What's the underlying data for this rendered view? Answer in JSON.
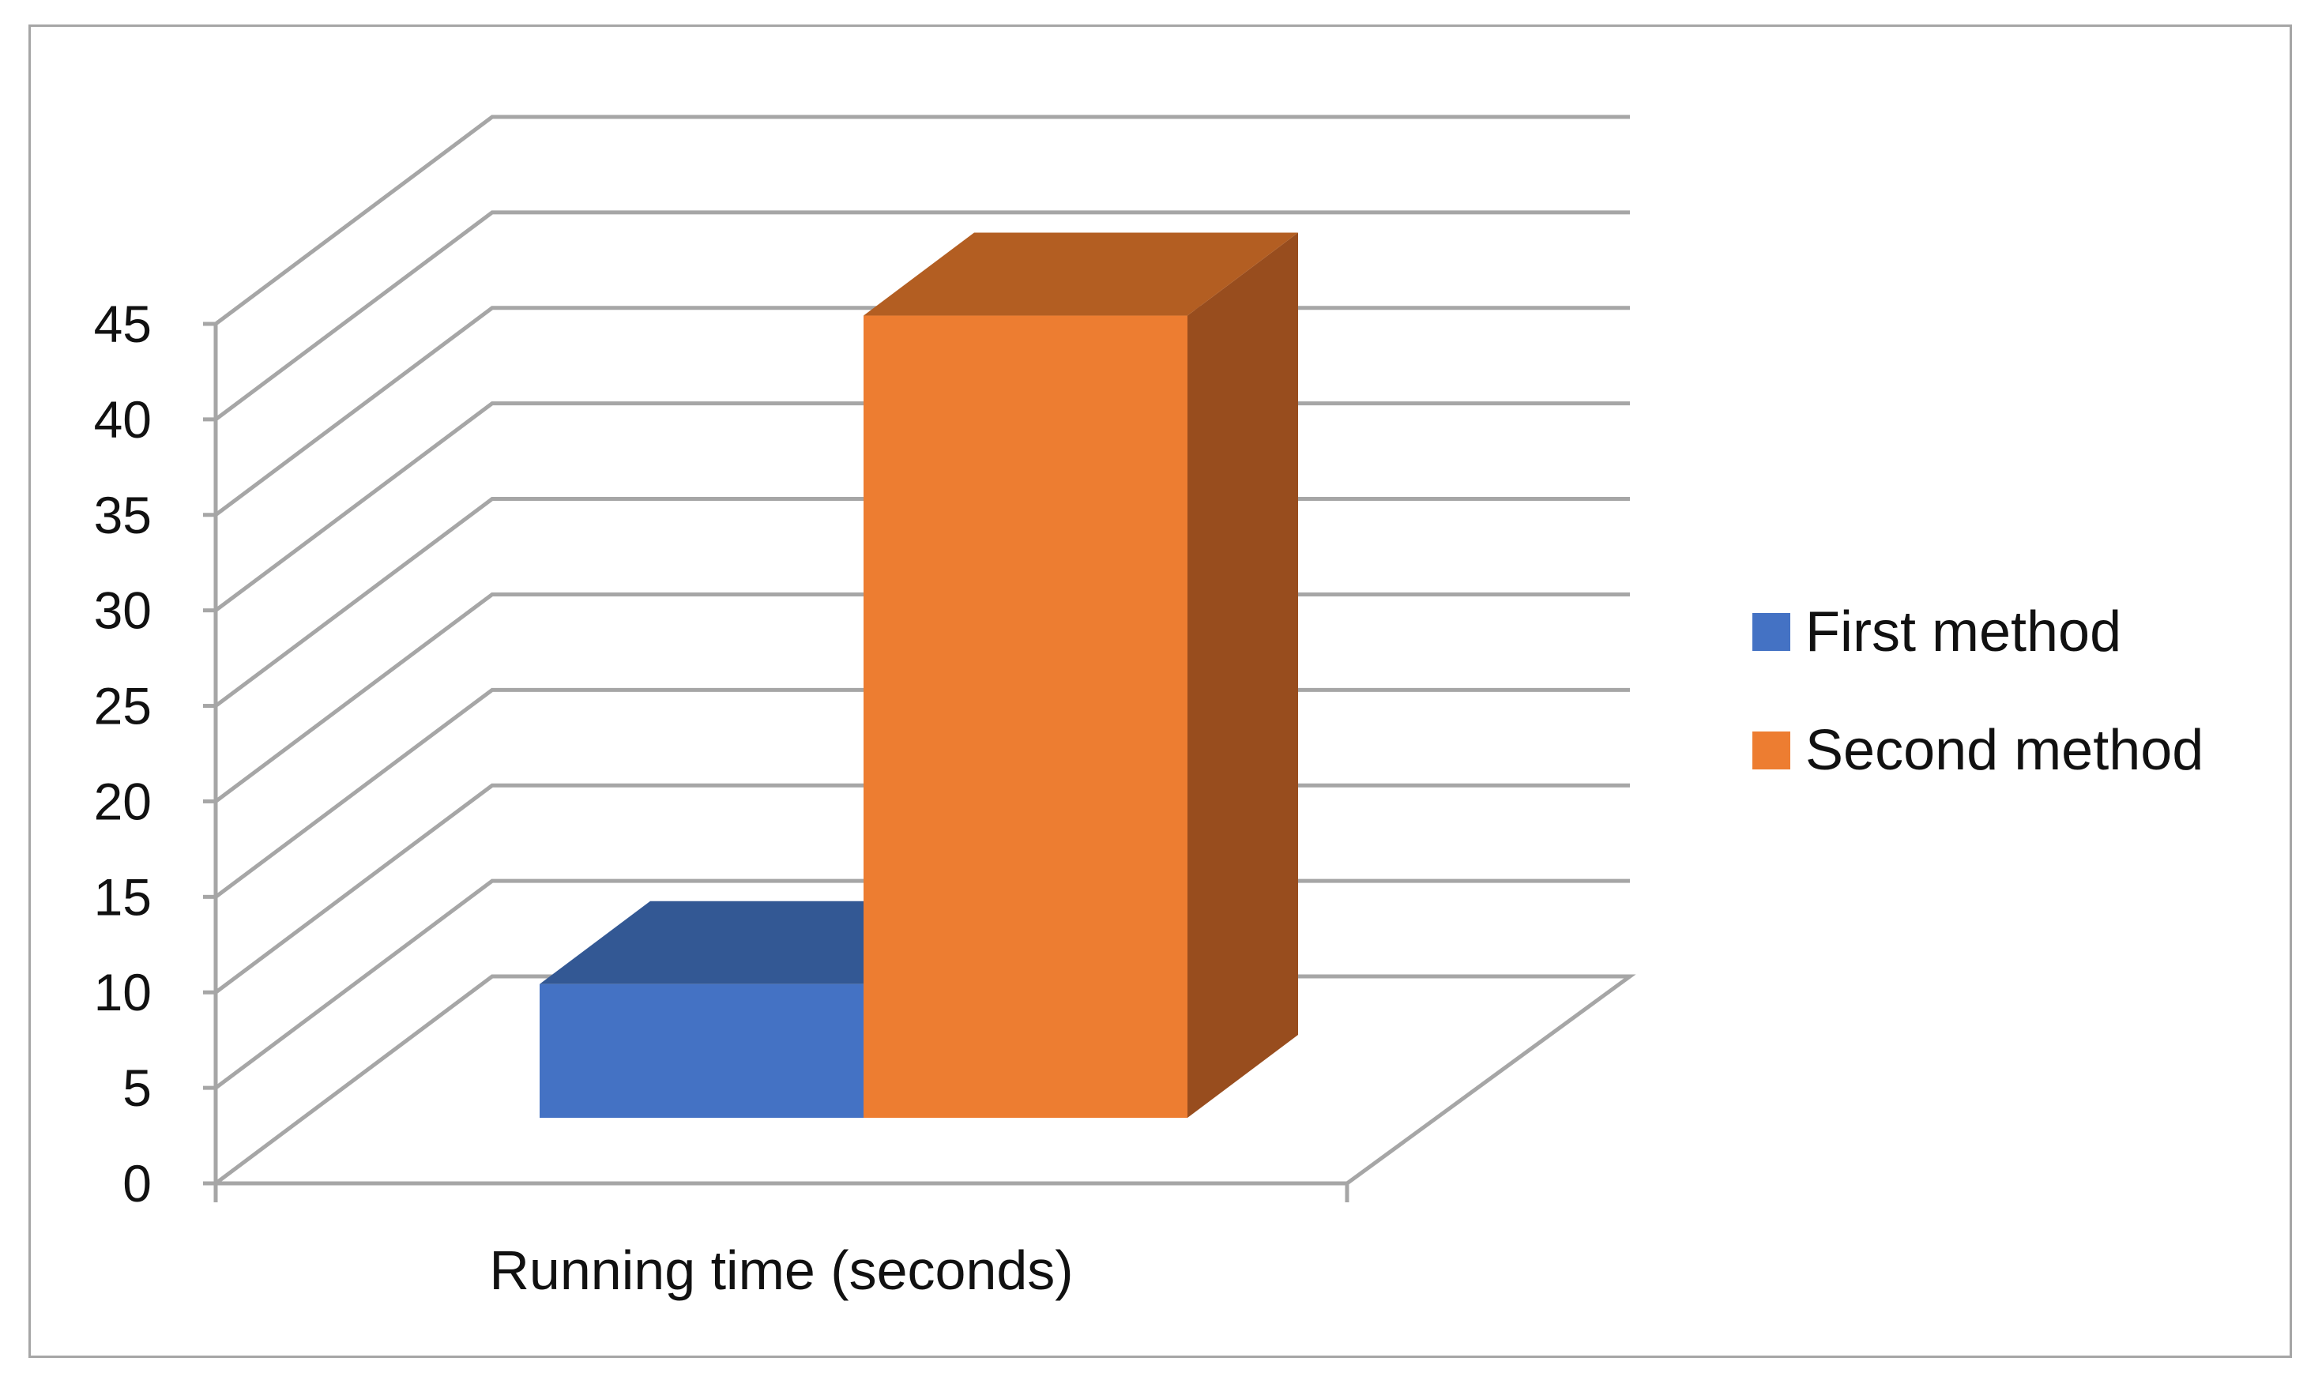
{
  "chart_data": {
    "type": "bar",
    "style": "3d-clustered-column",
    "categories": [
      "Running time (seconds)"
    ],
    "series": [
      {
        "name": "First method",
        "values": [
          7
        ],
        "color": "#4472c4",
        "top_color": "#335894",
        "side_color": "#2f528f"
      },
      {
        "name": "Second method",
        "values": [
          42
        ],
        "color": "#ed7d31",
        "top_color": "#b35e22",
        "side_color": "#984d1e"
      }
    ],
    "title": "",
    "xlabel": "",
    "ylabel": "",
    "ylim": [
      0,
      45
    ],
    "yticks": [
      "0",
      "5",
      "10",
      "15",
      "20",
      "25",
      "30",
      "35",
      "40",
      "45"
    ],
    "grid": true,
    "grid_color": "#a6a6a6",
    "legend": "right"
  }
}
